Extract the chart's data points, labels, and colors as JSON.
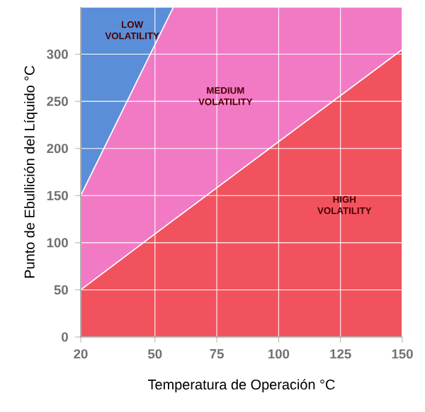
{
  "chart_data": {
    "type": "area",
    "stacked": true,
    "grid": true,
    "xlabel": "Temperatura de Operación °C",
    "ylabel": "Punto de Ebullición del Líquido °C",
    "x": [
      20,
      57.5,
      150
    ],
    "series": [
      {
        "name": "HIGH VOLATILITY",
        "color": "#f2525e",
        "values": [
          50,
          124,
          305
        ]
      },
      {
        "name": "MEDIUM VOLATILITY",
        "color": "#f27ac4",
        "values": [
          100,
          226,
          45
        ]
      },
      {
        "name": "LOW VOLATILITY",
        "color": "#5b8ed8",
        "values": [
          200,
          0,
          0
        ]
      }
    ],
    "xlim": [
      20,
      150
    ],
    "ylim": [
      0,
      350
    ],
    "xticks": [
      20,
      50,
      75,
      100,
      125,
      150
    ],
    "yticks": [
      0,
      50,
      100,
      150,
      200,
      250,
      300
    ]
  }
}
